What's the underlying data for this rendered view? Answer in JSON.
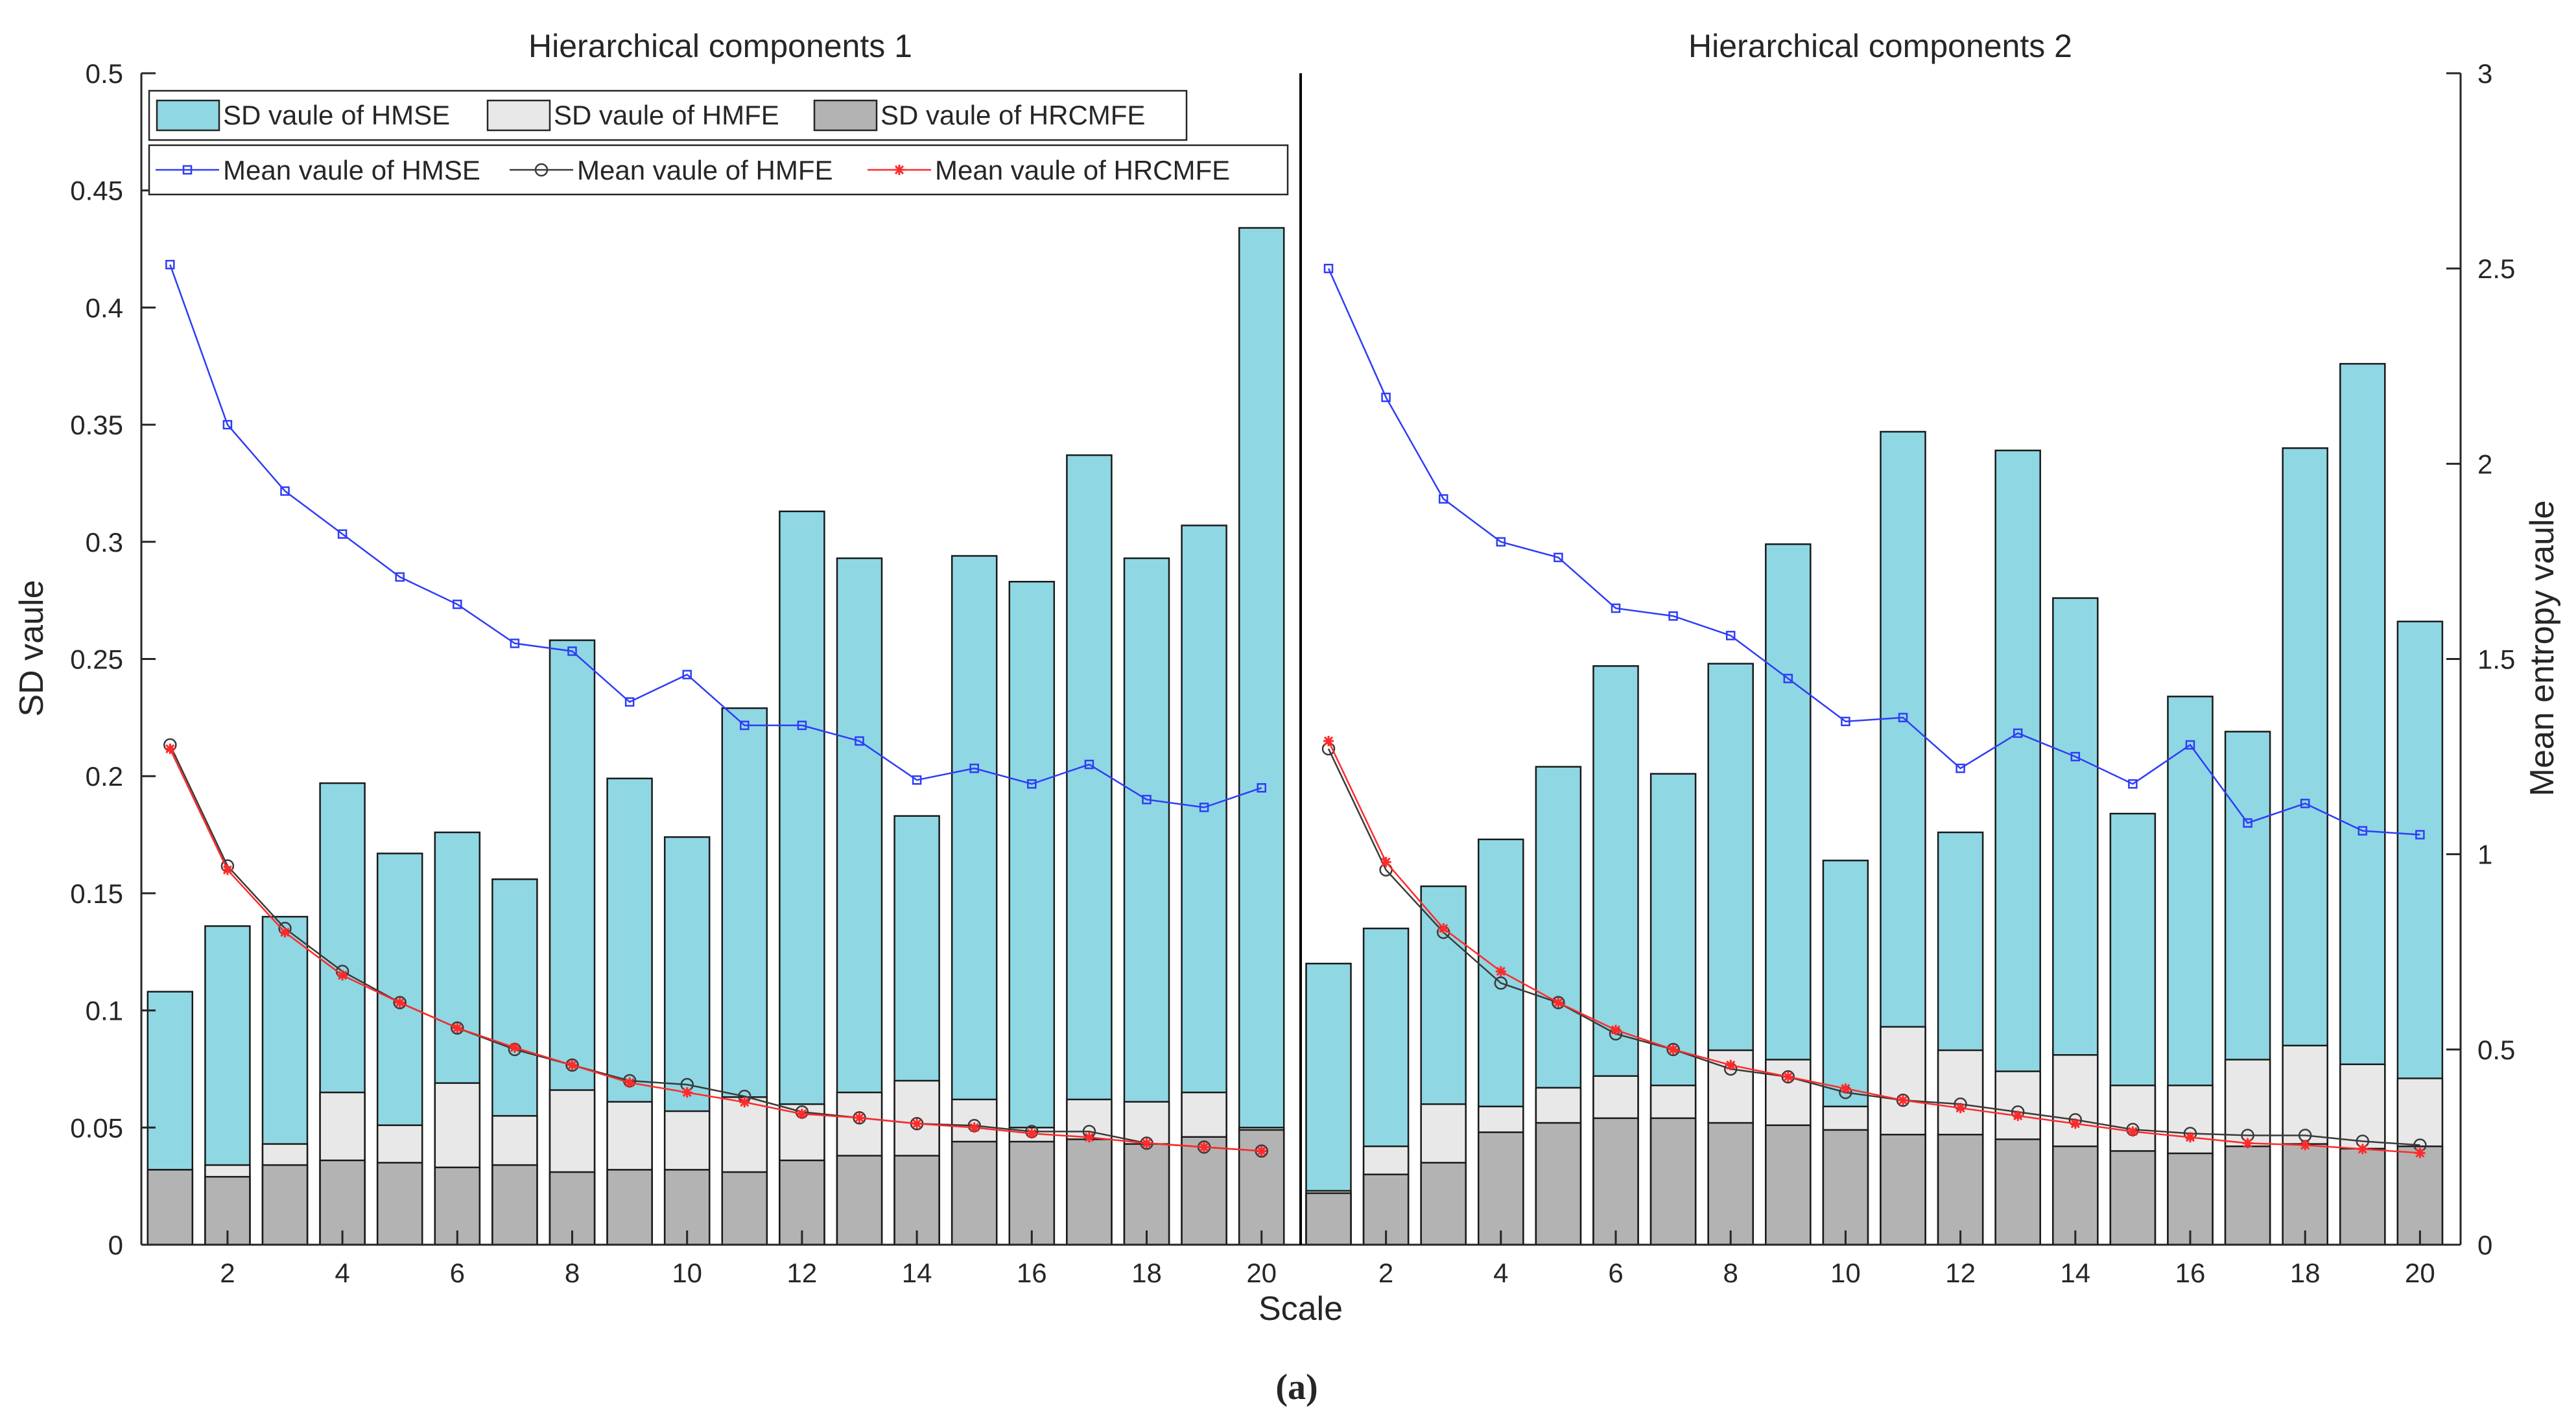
{
  "chart_data": {
    "type": "bar",
    "caption": "(a)",
    "xlabel": "Scale",
    "ylabel_left": "SD vaule",
    "ylabel_right": "Mean entropy vaule",
    "ylim_left": [
      0,
      0.5
    ],
    "ylim_right": [
      0,
      3
    ],
    "yticks_left": [
      "0",
      "0.05",
      "0.1",
      "0.15",
      "0.2",
      "0.25",
      "0.3",
      "0.35",
      "0.4",
      "0.45",
      "0.5"
    ],
    "yticks_right": [
      "0",
      "0.5",
      "1",
      "1.5",
      "2",
      "2.5",
      "3"
    ],
    "xticks": [
      "2",
      "4",
      "6",
      "8",
      "10",
      "12",
      "14",
      "16",
      "18",
      "20"
    ],
    "scales": [
      1,
      2,
      3,
      4,
      5,
      6,
      7,
      8,
      9,
      10,
      11,
      12,
      13,
      14,
      15,
      16,
      17,
      18,
      19,
      20
    ],
    "legend_bars": [
      "SD vaule of HMSE",
      "SD vaule of HMFE",
      "SD vaule of HRCMFE"
    ],
    "legend_lines": [
      "Mean vaule of HMSE",
      "Mean vaule of HMFE",
      "Mean vaule of HRCMFE"
    ],
    "colors": {
      "hmse_bar": "#8fd7e3",
      "hmfe_bar": "#e8e8e8",
      "hrcmfe_bar": "#b3b3b3",
      "hmse_line": "#2e3df5",
      "hmfe_line": "#3a3a3a",
      "hrcmfe_line": "#ff2a2a"
    },
    "panels": [
      {
        "title": "Hierarchical components 1",
        "sd_hmse": [
          0.108,
          0.136,
          0.14,
          0.197,
          0.167,
          0.176,
          0.156,
          0.258,
          0.199,
          0.174,
          0.229,
          0.313,
          0.293,
          0.183,
          0.294,
          0.283,
          0.337,
          0.293,
          0.307,
          0.434
        ],
        "sd_hmfe": [
          0.032,
          0.034,
          0.043,
          0.065,
          0.051,
          0.069,
          0.055,
          0.066,
          0.061,
          0.057,
          0.063,
          0.06,
          0.065,
          0.07,
          0.062,
          0.05,
          0.062,
          0.061,
          0.065,
          0.05
        ],
        "sd_hrcmfe": [
          0.032,
          0.029,
          0.034,
          0.036,
          0.035,
          0.033,
          0.034,
          0.031,
          0.032,
          0.032,
          0.031,
          0.036,
          0.038,
          0.038,
          0.044,
          0.044,
          0.045,
          0.043,
          0.046,
          0.049
        ],
        "mean_hmse": [
          2.51,
          2.1,
          1.93,
          1.82,
          1.71,
          1.64,
          1.54,
          1.52,
          1.39,
          1.46,
          1.33,
          1.33,
          1.29,
          1.19,
          1.22,
          1.18,
          1.23,
          1.14,
          1.12,
          1.17
        ],
        "mean_hmfe": [
          1.28,
          0.97,
          0.81,
          0.7,
          0.62,
          0.555,
          0.5,
          0.46,
          0.42,
          0.41,
          0.38,
          0.34,
          0.325,
          0.31,
          0.305,
          0.29,
          0.29,
          0.26,
          0.25,
          0.24
        ],
        "mean_hrcmfe": [
          1.27,
          0.96,
          0.8,
          0.69,
          0.62,
          0.555,
          0.505,
          0.46,
          0.415,
          0.39,
          0.365,
          0.335,
          0.325,
          0.31,
          0.3,
          0.285,
          0.275,
          0.26,
          0.25,
          0.24
        ]
      },
      {
        "title": "Hierarchical components 2",
        "sd_hmse": [
          0.12,
          0.135,
          0.153,
          0.173,
          0.204,
          0.247,
          0.201,
          0.248,
          0.299,
          0.164,
          0.347,
          0.176,
          0.339,
          0.276,
          0.184,
          0.234,
          0.219,
          0.34,
          0.376,
          0.266
        ],
        "sd_hmfe": [
          0.023,
          0.042,
          0.06,
          0.059,
          0.067,
          0.072,
          0.068,
          0.083,
          0.079,
          0.059,
          0.093,
          0.083,
          0.074,
          0.081,
          0.068,
          0.068,
          0.079,
          0.085,
          0.077,
          0.071
        ],
        "sd_hrcmfe": [
          0.022,
          0.03,
          0.035,
          0.048,
          0.052,
          0.054,
          0.054,
          0.052,
          0.051,
          0.049,
          0.047,
          0.047,
          0.045,
          0.042,
          0.04,
          0.039,
          0.042,
          0.043,
          0.041,
          0.042
        ],
        "mean_hmse": [
          2.5,
          2.17,
          1.91,
          1.8,
          1.76,
          1.63,
          1.61,
          1.56,
          1.45,
          1.34,
          1.35,
          1.22,
          1.31,
          1.25,
          1.18,
          1.28,
          1.08,
          1.13,
          1.06,
          1.05
        ],
        "mean_hmfe": [
          1.27,
          0.96,
          0.8,
          0.67,
          0.62,
          0.54,
          0.5,
          0.45,
          0.43,
          0.39,
          0.37,
          0.36,
          0.34,
          0.32,
          0.295,
          0.285,
          0.28,
          0.28,
          0.265,
          0.255
        ],
        "mean_hrcmfe": [
          1.29,
          0.98,
          0.81,
          0.7,
          0.62,
          0.55,
          0.5,
          0.46,
          0.43,
          0.4,
          0.37,
          0.35,
          0.33,
          0.31,
          0.29,
          0.275,
          0.26,
          0.255,
          0.245,
          0.235
        ]
      }
    ]
  }
}
